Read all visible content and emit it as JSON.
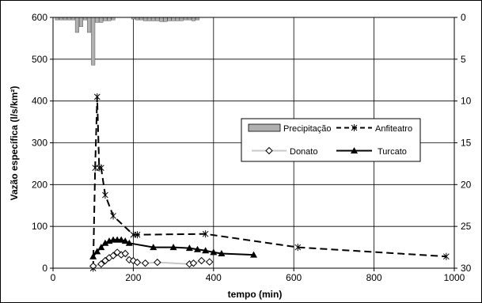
{
  "chart_data": {
    "type": "line",
    "title": "",
    "xlabel": "tempo (min)",
    "ylabel": "Vazão específica (l/s/km²)",
    "xlim": [
      0,
      1000
    ],
    "ylim": [
      0,
      600
    ],
    "y2lim": [
      0,
      30
    ],
    "y2_inverted": true,
    "grid": true,
    "legend_position": "center-right",
    "x_ticks": [
      "0",
      "200",
      "400",
      "600",
      "800",
      "1000"
    ],
    "y_ticks": [
      "0",
      "100",
      "200",
      "300",
      "400",
      "500",
      "600"
    ],
    "y2_ticks": [
      "0",
      "5",
      "10",
      "15",
      "20",
      "25",
      "30"
    ],
    "series": [
      {
        "name": "Precipitação",
        "kind": "bar",
        "axis": "right",
        "color": "#b0b0b0",
        "x": [
          10,
          20,
          30,
          40,
          50,
          60,
          70,
          80,
          90,
          100,
          110,
          120,
          130,
          140,
          150,
          200,
          210,
          220,
          230,
          240,
          250,
          260,
          270,
          280,
          290,
          300,
          310,
          320,
          330,
          340,
          350,
          360
        ],
        "values": [
          0.3,
          0.3,
          0.3,
          0.3,
          0.3,
          1.8,
          1.1,
          0.3,
          1.8,
          5.7,
          0.6,
          0.6,
          0.4,
          0.4,
          0.3,
          0.2,
          0.3,
          0.3,
          0.4,
          0.4,
          0.4,
          0.4,
          0.5,
          0.5,
          0.4,
          0.4,
          0.4,
          0.4,
          0.3,
          0.3,
          0.4,
          0.3
        ]
      },
      {
        "name": "Anfiteatro",
        "kind": "line",
        "axis": "left",
        "color": "#000000",
        "dash": "dash",
        "marker": "star",
        "x": [
          100,
          105,
          110,
          115,
          120,
          130,
          150,
          200,
          210,
          380,
          610,
          980
        ],
        "values": [
          0,
          240,
          410,
          240,
          240,
          175,
          125,
          80,
          80,
          82,
          50,
          28
        ]
      },
      {
        "name": "Donato",
        "kind": "line",
        "axis": "left",
        "color": "#c8c8c8",
        "dash": "solid",
        "marker": "diamond",
        "x": [
          100,
          120,
          130,
          140,
          150,
          160,
          170,
          180,
          190,
          200,
          210,
          230,
          260,
          340,
          350,
          370,
          390
        ],
        "values": [
          5,
          10,
          18,
          25,
          30,
          38,
          32,
          35,
          20,
          18,
          14,
          12,
          14,
          10,
          12,
          18,
          15
        ]
      },
      {
        "name": "Turcato",
        "kind": "line",
        "axis": "left",
        "color": "#000000",
        "dash": "solid",
        "marker": "triangle",
        "x": [
          100,
          110,
          120,
          130,
          140,
          150,
          160,
          170,
          180,
          190,
          250,
          300,
          340,
          360,
          380,
          400,
          420,
          500
        ],
        "values": [
          28,
          40,
          50,
          60,
          65,
          68,
          68,
          68,
          65,
          60,
          50,
          50,
          48,
          45,
          42,
          38,
          35,
          32
        ]
      }
    ]
  }
}
